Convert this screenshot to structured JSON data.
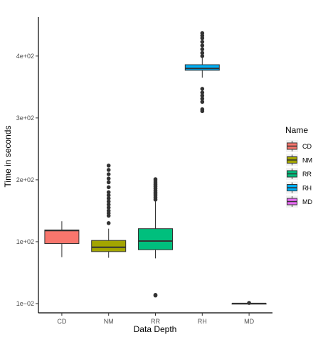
{
  "chart_data": {
    "type": "box",
    "xlabel": "Data Depth",
    "ylabel": "Time in seconds",
    "ylim": [
      -15,
      463
    ],
    "yticks": [
      {
        "value": 0.01,
        "label": "1e−02"
      },
      {
        "value": 100,
        "label": "1e+02"
      },
      {
        "value": 200,
        "label": "2e+02"
      },
      {
        "value": 300,
        "label": "3e+02"
      },
      {
        "value": 400,
        "label": "4e+02"
      }
    ],
    "categories": [
      "CD",
      "NM",
      "RR",
      "RH",
      "MD"
    ],
    "legend": {
      "title": "Name",
      "placement": "right",
      "entries": [
        "CD",
        "NM",
        "RR",
        "RH",
        "MD"
      ]
    },
    "series": [
      {
        "name": "CD",
        "color": "#F8766D",
        "whisker_low": 75,
        "q1": 97,
        "median": 118,
        "q3": 119,
        "whisker_high": 133,
        "outliers": []
      },
      {
        "name": "NM",
        "color": "#A3A500",
        "whisker_low": 74,
        "q1": 84,
        "median": 91,
        "q3": 102,
        "whisker_high": 121,
        "outliers": [
          130,
          142,
          146,
          150,
          155,
          160,
          165,
          170,
          175,
          180,
          188,
          196,
          202,
          209,
          216,
          223
        ]
      },
      {
        "name": "RR",
        "color": "#00BF7D",
        "whisker_low": 73,
        "q1": 87,
        "median": 101,
        "q3": 121,
        "whisker_high": 167,
        "outliers": [
          13,
          14,
          168,
          171,
          174,
          177,
          180,
          183,
          186,
          189,
          192,
          195,
          198,
          201
        ]
      },
      {
        "name": "RH",
        "color": "#00B0F6",
        "whisker_low": 365,
        "q1": 377,
        "median": 380,
        "q3": 386,
        "whisker_high": 398,
        "outliers": [
          311,
          314,
          326,
          331,
          336,
          341,
          347,
          400,
          405,
          411,
          417,
          423,
          429,
          433,
          437
        ]
      },
      {
        "name": "MD",
        "color": "#E76BF3",
        "whisker_low": 0.01,
        "q1": 0.01,
        "median": 0.01,
        "q3": 0.01,
        "whisker_high": 0.01,
        "outliers": [
          1.0
        ]
      }
    ]
  }
}
